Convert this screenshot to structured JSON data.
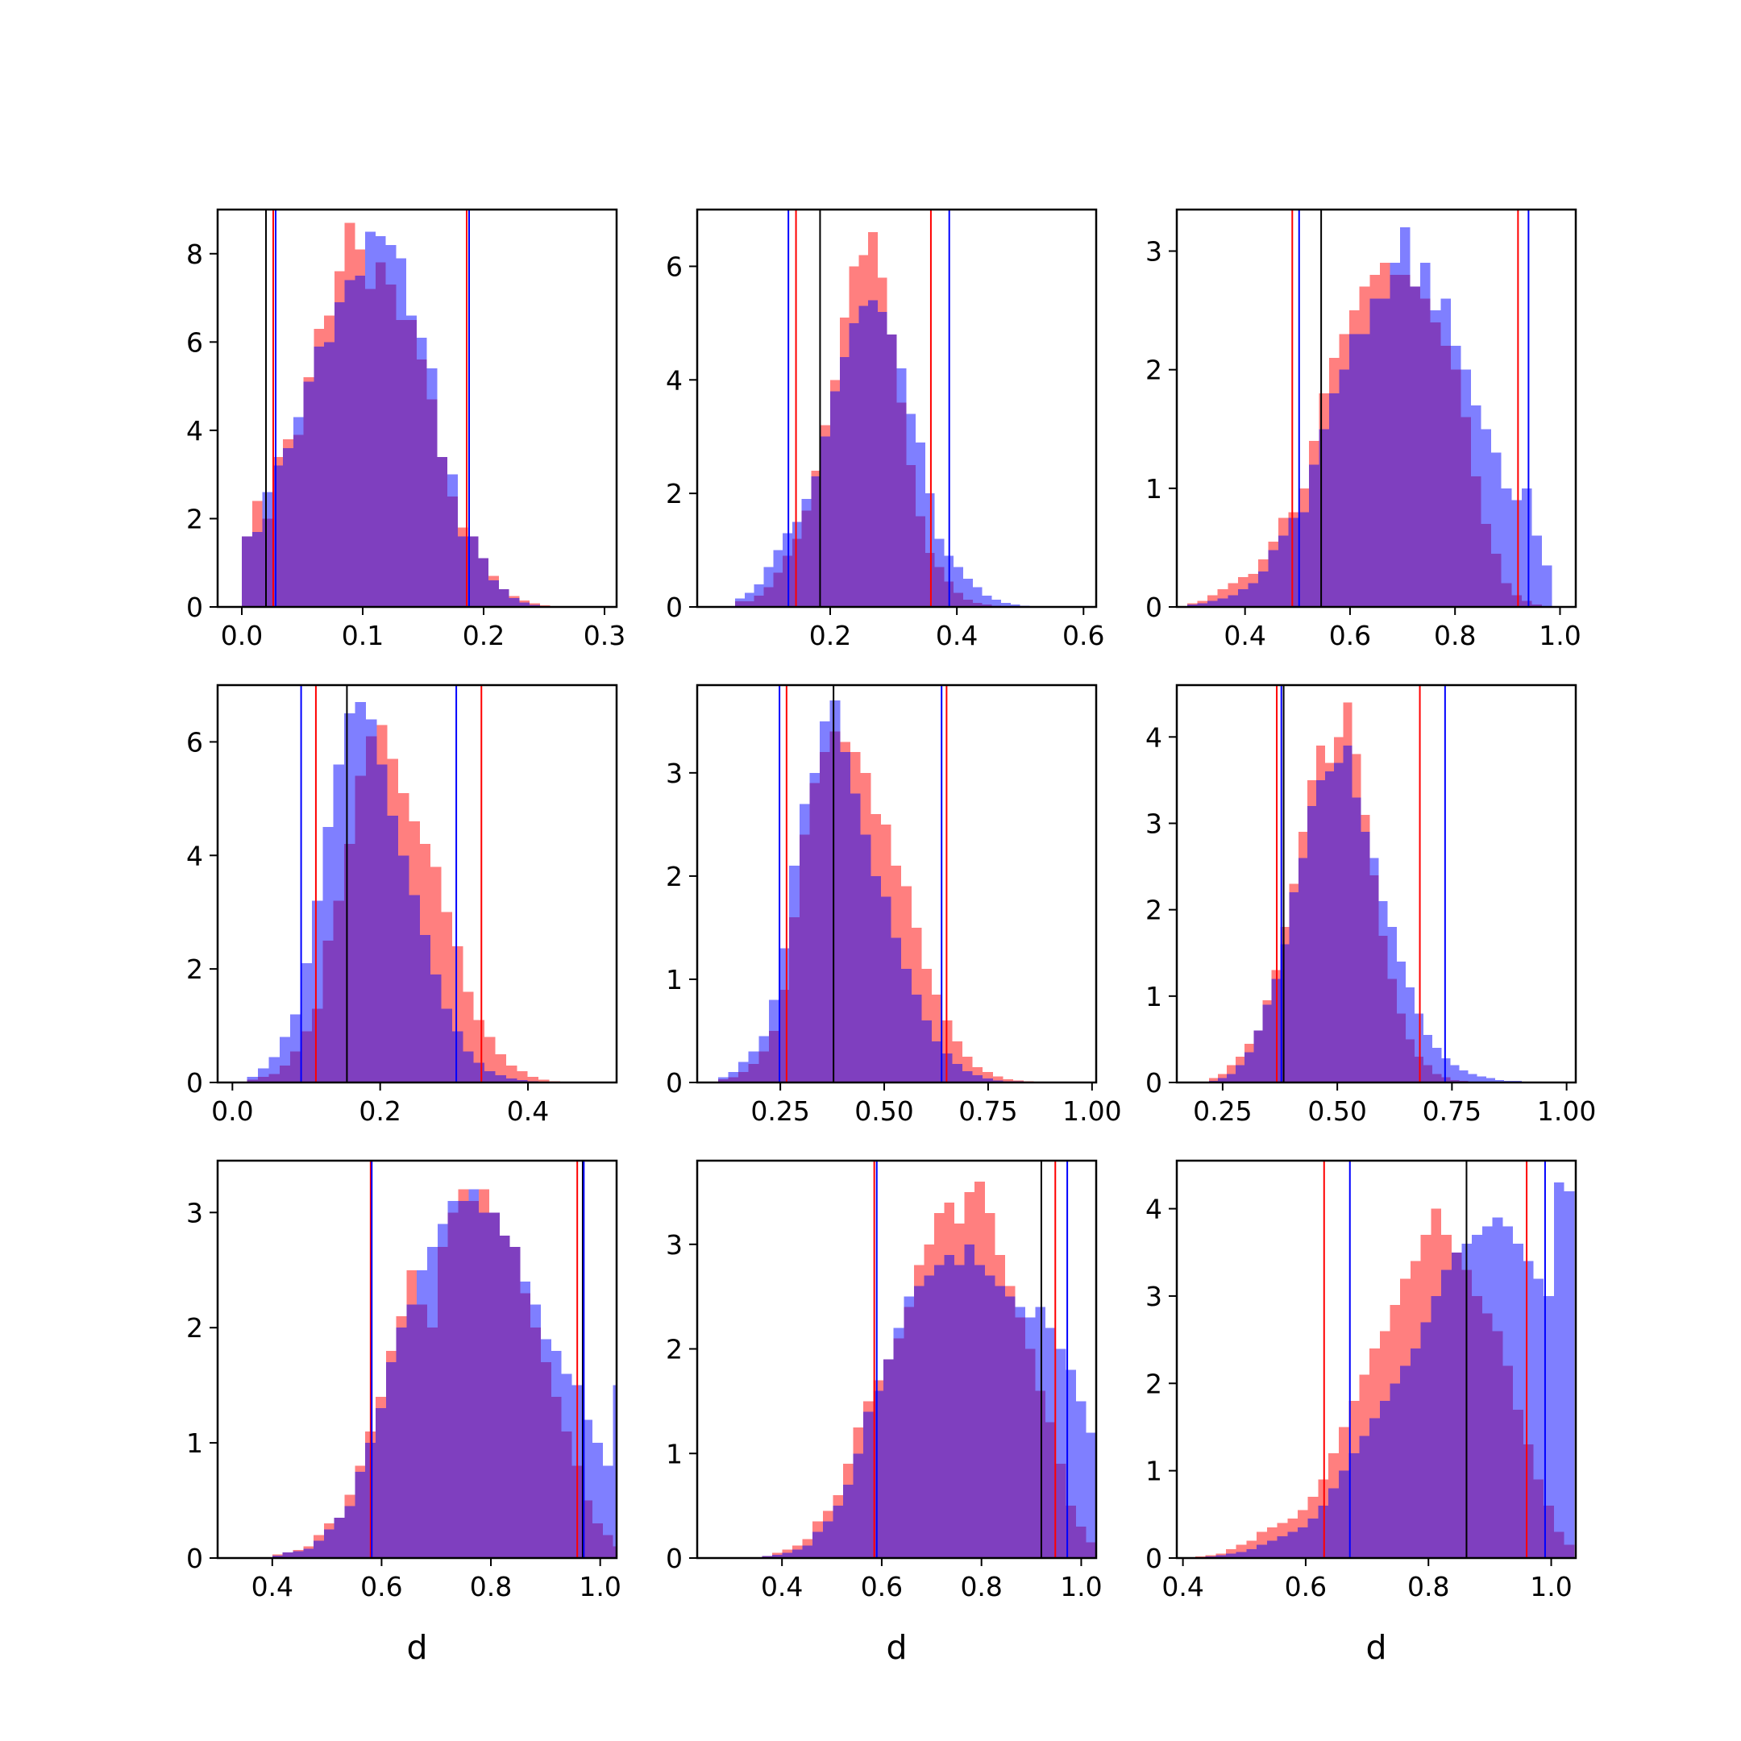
{
  "colors": {
    "red_hist": "#ff0000",
    "blue_hist": "#0000ff",
    "red_line": "#ff0000",
    "blue_line": "#0000ff",
    "black_line": "#000000"
  },
  "chart_data": [
    {
      "type": "histogram",
      "xlim": [
        -0.02,
        0.31
      ],
      "ylim": [
        0,
        9
      ],
      "xticks": [
        0.0,
        0.1,
        0.2,
        0.3
      ],
      "xtick_labels": [
        "0.0",
        "0.1",
        "0.2",
        "0.3"
      ],
      "yticks": [
        0,
        2,
        4,
        6,
        8
      ],
      "ytick_labels": [
        "0",
        "2",
        "4",
        "6",
        "8"
      ],
      "xlabel": "",
      "red": {
        "start": 0.0,
        "width": 0.0085,
        "values": [
          1.6,
          2.4,
          2.0,
          3.4,
          3.8,
          3.9,
          5.2,
          6.3,
          6.6,
          7.6,
          8.7,
          8.1,
          7.2,
          7.8,
          7.3,
          6.5,
          6.5,
          5.6,
          4.7,
          3.4,
          2.5,
          1.8,
          1.6,
          1.1,
          0.7,
          0.4,
          0.25,
          0.15,
          0.08,
          0.04,
          0.02,
          0.01
        ]
      },
      "blue": {
        "start": 0.0,
        "width": 0.0085,
        "values": [
          1.6,
          1.7,
          2.6,
          3.2,
          3.6,
          4.3,
          5.1,
          5.9,
          6.0,
          6.9,
          7.4,
          7.5,
          8.5,
          8.4,
          8.2,
          7.9,
          6.6,
          6.1,
          5.4,
          3.4,
          3.0,
          1.6,
          1.6,
          1.1,
          0.6,
          0.4,
          0.2,
          0.1,
          0.05,
          0.02,
          0.01,
          0.0
        ]
      },
      "vlines": {
        "black": [
          0.02
        ],
        "red": [
          0.026,
          0.186
        ],
        "blue": [
          0.028,
          0.188
        ]
      }
    },
    {
      "type": "histogram",
      "xlim": [
        -0.01,
        0.62
      ],
      "ylim": [
        0,
        7
      ],
      "xticks": [
        0.2,
        0.4,
        0.6
      ],
      "xtick_labels": [
        "0.2",
        "0.4",
        "0.6"
      ],
      "yticks": [
        0,
        2,
        4,
        6
      ],
      "ytick_labels": [
        "0",
        "2",
        "4",
        "6"
      ],
      "xlabel": "",
      "red": {
        "start": 0.05,
        "width": 0.015,
        "values": [
          0.1,
          0.1,
          0.2,
          0.35,
          0.6,
          0.9,
          1.2,
          1.7,
          2.4,
          3.2,
          4.0,
          5.1,
          6.0,
          6.2,
          6.6,
          5.8,
          4.8,
          3.6,
          2.5,
          1.6,
          0.95,
          0.7,
          0.45,
          0.25,
          0.13,
          0.07,
          0.04,
          0.02,
          0.01,
          0.01,
          0.0,
          0.0
        ]
      },
      "blue": {
        "start": 0.05,
        "width": 0.015,
        "values": [
          0.15,
          0.25,
          0.4,
          0.7,
          1.0,
          1.3,
          1.5,
          1.9,
          2.3,
          3.0,
          3.8,
          4.4,
          5.0,
          5.3,
          5.4,
          5.2,
          4.8,
          4.2,
          3.4,
          2.9,
          2.0,
          1.2,
          0.9,
          0.7,
          0.5,
          0.35,
          0.2,
          0.13,
          0.07,
          0.04,
          0.02,
          0.01
        ]
      },
      "vlines": {
        "black": [
          0.184
        ],
        "red": [
          0.146,
          0.359
        ],
        "blue": [
          0.134,
          0.388
        ]
      }
    },
    {
      "type": "histogram",
      "xlim": [
        0.27,
        1.03
      ],
      "ylim": [
        0,
        3.35
      ],
      "xticks": [
        0.4,
        0.6,
        0.8,
        1.0
      ],
      "xtick_labels": [
        "0.4",
        "0.6",
        "0.8",
        "1.0"
      ],
      "yticks": [
        0,
        1,
        2,
        3
      ],
      "ytick_labels": [
        "0",
        "1",
        "2",
        "3"
      ],
      "xlabel": "",
      "red": {
        "start": 0.29,
        "width": 0.0193,
        "values": [
          0.03,
          0.05,
          0.1,
          0.15,
          0.2,
          0.25,
          0.28,
          0.4,
          0.55,
          0.75,
          0.8,
          1.0,
          1.4,
          1.8,
          2.1,
          2.3,
          2.5,
          2.7,
          2.8,
          2.9,
          2.8,
          2.8,
          2.7,
          2.6,
          2.4,
          2.2,
          2.0,
          1.6,
          1.1,
          0.7,
          0.45,
          0.2,
          0.1,
          0.05,
          0.02,
          0.0
        ]
      },
      "blue": {
        "start": 0.29,
        "width": 0.0193,
        "values": [
          0.02,
          0.03,
          0.05,
          0.07,
          0.1,
          0.15,
          0.2,
          0.3,
          0.48,
          0.6,
          0.75,
          0.8,
          1.2,
          1.5,
          1.8,
          2.0,
          2.3,
          2.3,
          2.6,
          2.6,
          2.9,
          3.2,
          2.7,
          2.9,
          2.5,
          2.6,
          2.2,
          2.0,
          1.7,
          1.5,
          1.3,
          1.0,
          0.9,
          1.0,
          0.6,
          0.35
        ]
      },
      "vlines": {
        "black": [
          0.545
        ],
        "red": [
          0.49,
          0.92
        ],
        "blue": [
          0.503,
          0.94
        ]
      }
    },
    {
      "type": "histogram",
      "xlim": [
        -0.02,
        0.52
      ],
      "ylim": [
        0,
        7
      ],
      "xticks": [
        0.0,
        0.2,
        0.4
      ],
      "xtick_labels": [
        "0.0",
        "0.2",
        "0.4"
      ],
      "yticks": [
        0,
        2,
        4,
        6
      ],
      "ytick_labels": [
        "0",
        "2",
        "4",
        "6"
      ],
      "xlabel": "",
      "red": {
        "start": 0.02,
        "width": 0.0146,
        "values": [
          0.05,
          0.1,
          0.15,
          0.3,
          0.55,
          0.9,
          1.3,
          2.5,
          3.2,
          4.2,
          5.4,
          6.1,
          6.3,
          5.7,
          5.1,
          4.6,
          4.2,
          3.8,
          3.0,
          2.4,
          1.6,
          1.1,
          0.8,
          0.5,
          0.3,
          0.2,
          0.1,
          0.05,
          0.02,
          0.01,
          0.0,
          0.0,
          0.0
        ]
      },
      "blue": {
        "start": 0.02,
        "width": 0.0146,
        "values": [
          0.1,
          0.25,
          0.45,
          0.8,
          1.2,
          2.1,
          3.2,
          4.5,
          5.6,
          6.5,
          6.7,
          6.4,
          5.6,
          4.7,
          4.0,
          3.3,
          2.6,
          1.9,
          1.3,
          0.9,
          0.55,
          0.35,
          0.2,
          0.13,
          0.07,
          0.04,
          0.02,
          0.01,
          0.0,
          0.0,
          0.0,
          0.0,
          0.0
        ]
      },
      "vlines": {
        "black": [
          0.155
        ],
        "red": [
          0.113,
          0.337
        ],
        "blue": [
          0.093,
          0.303
        ]
      }
    },
    {
      "type": "histogram",
      "xlim": [
        0.05,
        1.01
      ],
      "ylim": [
        0,
        3.85
      ],
      "xticks": [
        0.25,
        0.5,
        0.75,
        1.0
      ],
      "xtick_labels": [
        "0.25",
        "0.50",
        "0.75",
        "1.00"
      ],
      "yticks": [
        0,
        1,
        2,
        3
      ],
      "ytick_labels": [
        "0",
        "1",
        "2",
        "3"
      ],
      "xlabel": "",
      "red": {
        "start": 0.1,
        "width": 0.0245,
        "values": [
          0.03,
          0.05,
          0.1,
          0.18,
          0.3,
          0.5,
          0.9,
          1.6,
          2.4,
          2.9,
          3.2,
          3.4,
          3.3,
          3.2,
          3.0,
          2.6,
          2.5,
          2.1,
          1.9,
          1.5,
          1.1,
          0.85,
          0.6,
          0.4,
          0.25,
          0.15,
          0.1,
          0.06,
          0.03,
          0.02,
          0.01,
          0.0,
          0.0,
          0.0
        ]
      },
      "blue": {
        "start": 0.1,
        "width": 0.0245,
        "values": [
          0.05,
          0.1,
          0.2,
          0.3,
          0.45,
          0.8,
          1.3,
          2.1,
          2.7,
          3.0,
          3.5,
          3.7,
          3.2,
          2.8,
          2.4,
          2.0,
          1.8,
          1.4,
          1.1,
          0.85,
          0.6,
          0.4,
          0.28,
          0.18,
          0.11,
          0.07,
          0.04,
          0.02,
          0.01,
          0.01,
          0.0,
          0.0,
          0.0,
          0.0
        ]
      },
      "vlines": {
        "black": [
          0.378
        ],
        "red": [
          0.265,
          0.65
        ],
        "blue": [
          0.248,
          0.638
        ]
      }
    },
    {
      "type": "histogram",
      "xlim": [
        0.15,
        1.02
      ],
      "ylim": [
        0,
        4.6
      ],
      "xticks": [
        0.25,
        0.5,
        0.75,
        1.0
      ],
      "xtick_labels": [
        "0.25",
        "0.50",
        "0.75",
        "1.00"
      ],
      "yticks": [
        0,
        1,
        2,
        3,
        4
      ],
      "ytick_labels": [
        "0",
        "1",
        "2",
        "3",
        "4"
      ],
      "xlabel": "",
      "red": {
        "start": 0.22,
        "width": 0.0195,
        "values": [
          0.05,
          0.1,
          0.2,
          0.3,
          0.45,
          0.6,
          0.95,
          1.3,
          1.8,
          2.3,
          2.9,
          3.5,
          3.9,
          3.7,
          4.0,
          4.4,
          3.8,
          3.1,
          2.4,
          1.7,
          1.2,
          0.8,
          0.5,
          0.3,
          0.2,
          0.1,
          0.06,
          0.03,
          0.02,
          0.01,
          0.0,
          0.0,
          0.0,
          0.0,
          0.0,
          0.0,
          0.0,
          0.0,
          0.0
        ]
      },
      "blue": {
        "start": 0.22,
        "width": 0.0195,
        "values": [
          0.02,
          0.05,
          0.1,
          0.2,
          0.35,
          0.6,
          0.9,
          1.2,
          1.6,
          2.2,
          2.6,
          3.2,
          3.5,
          3.6,
          3.7,
          3.9,
          3.3,
          2.9,
          2.6,
          2.1,
          1.8,
          1.4,
          1.1,
          0.8,
          0.55,
          0.4,
          0.28,
          0.2,
          0.14,
          0.1,
          0.07,
          0.05,
          0.03,
          0.02,
          0.02,
          0.01,
          0.01,
          0.01,
          0.01
        ]
      },
      "vlines": {
        "black": [
          0.383
        ],
        "red": [
          0.368,
          0.68
        ],
        "blue": [
          0.378,
          0.735
        ]
      }
    },
    {
      "type": "histogram",
      "xlim": [
        0.3,
        1.03
      ],
      "ylim": [
        0,
        3.45
      ],
      "xticks": [
        0.4,
        0.6,
        0.8,
        1.0
      ],
      "xtick_labels": [
        "0.4",
        "0.6",
        "0.8",
        "1.0"
      ],
      "yticks": [
        0,
        1,
        2,
        3
      ],
      "ytick_labels": [
        "0",
        "1",
        "2",
        "3"
      ],
      "xlabel": "d",
      "red": {
        "start": 0.4,
        "width": 0.0189,
        "values": [
          0.03,
          0.05,
          0.07,
          0.1,
          0.2,
          0.3,
          0.35,
          0.55,
          0.8,
          1.1,
          1.4,
          1.8,
          2.1,
          2.5,
          2.2,
          2.0,
          2.7,
          3.0,
          3.2,
          3.1,
          3.2,
          3.0,
          2.8,
          2.7,
          2.3,
          2.0,
          1.7,
          1.4,
          1.1,
          0.8,
          0.5,
          0.3,
          0.2,
          0.1,
          0.05
        ]
      },
      "blue": {
        "start": 0.4,
        "width": 0.0189,
        "values": [
          0.02,
          0.05,
          0.06,
          0.08,
          0.15,
          0.25,
          0.35,
          0.45,
          0.75,
          1.0,
          1.3,
          1.7,
          2.0,
          2.2,
          2.5,
          2.7,
          2.9,
          3.1,
          3.1,
          3.2,
          3.0,
          3.0,
          2.8,
          2.7,
          2.4,
          2.2,
          1.9,
          1.8,
          1.6,
          1.5,
          1.2,
          1.0,
          0.8,
          1.5,
          1.0
        ]
      },
      "vlines": {
        "black": [
          0.968
        ],
        "red": [
          0.58,
          0.958
        ],
        "blue": [
          0.582,
          0.97
        ]
      }
    },
    {
      "type": "histogram",
      "xlim": [
        0.23,
        1.03
      ],
      "ylim": [
        0,
        3.8
      ],
      "xticks": [
        0.4,
        0.6,
        0.8,
        1.0
      ],
      "xtick_labels": [
        "0.4",
        "0.6",
        "0.8",
        "1.0"
      ],
      "yticks": [
        0,
        1,
        2,
        3
      ],
      "ytick_labels": [
        "0",
        "1",
        "2",
        "3"
      ],
      "xlabel": "d",
      "red": {
        "start": 0.36,
        "width": 0.0203,
        "values": [
          0.02,
          0.05,
          0.08,
          0.12,
          0.18,
          0.35,
          0.45,
          0.6,
          0.9,
          1.25,
          1.5,
          1.7,
          1.9,
          2.1,
          2.4,
          2.8,
          3.0,
          3.3,
          3.4,
          3.2,
          3.5,
          3.6,
          3.3,
          2.9,
          2.6,
          2.3,
          2.0,
          1.6,
          1.3,
          0.9,
          0.5,
          0.3,
          0.15
        ]
      },
      "blue": {
        "start": 0.36,
        "width": 0.0203,
        "values": [
          0.02,
          0.03,
          0.05,
          0.08,
          0.12,
          0.25,
          0.35,
          0.5,
          0.7,
          1.0,
          1.4,
          1.6,
          1.9,
          2.2,
          2.5,
          2.6,
          2.7,
          2.8,
          2.9,
          2.8,
          3.0,
          2.8,
          2.7,
          2.6,
          2.5,
          2.4,
          2.3,
          2.4,
          2.2,
          2.0,
          1.8,
          1.5,
          1.2
        ]
      },
      "vlines": {
        "black": [
          0.92
        ],
        "red": [
          0.585,
          0.948
        ],
        "blue": [
          0.59,
          0.972
        ]
      }
    },
    {
      "type": "histogram",
      "xlim": [
        0.39,
        1.04
      ],
      "ylim": [
        0,
        4.55
      ],
      "xticks": [
        0.4,
        0.6,
        0.8,
        1.0
      ],
      "xtick_labels": [
        "0.4",
        "0.6",
        "0.8",
        "1.0"
      ],
      "yticks": [
        0,
        1,
        2,
        3,
        4
      ],
      "ytick_labels": [
        "0",
        "1",
        "2",
        "3",
        "4"
      ],
      "xlabel": "d",
      "red": {
        "start": 0.42,
        "width": 0.0167,
        "values": [
          0.02,
          0.03,
          0.05,
          0.1,
          0.15,
          0.2,
          0.3,
          0.35,
          0.4,
          0.45,
          0.55,
          0.7,
          0.9,
          1.2,
          1.5,
          1.8,
          2.1,
          2.4,
          2.6,
          2.9,
          3.2,
          3.4,
          3.7,
          4.0,
          3.7,
          3.5,
          3.3,
          3.0,
          2.8,
          2.6,
          2.2,
          1.7,
          1.3,
          0.9,
          0.6,
          0.3,
          0.15
        ]
      },
      "blue": {
        "start": 0.42,
        "width": 0.0167,
        "values": [
          0.01,
          0.02,
          0.03,
          0.05,
          0.07,
          0.1,
          0.15,
          0.2,
          0.25,
          0.3,
          0.35,
          0.45,
          0.6,
          0.8,
          1.0,
          1.2,
          1.4,
          1.6,
          1.8,
          2.0,
          2.2,
          2.4,
          2.7,
          3.0,
          3.3,
          3.5,
          3.6,
          3.7,
          3.8,
          3.9,
          3.8,
          3.6,
          3.4,
          3.2,
          3.0,
          4.3,
          4.2
        ]
      },
      "vlines": {
        "black": [
          0.862
        ],
        "red": [
          0.63,
          0.96
        ],
        "blue": [
          0.672,
          0.99
        ]
      }
    }
  ]
}
